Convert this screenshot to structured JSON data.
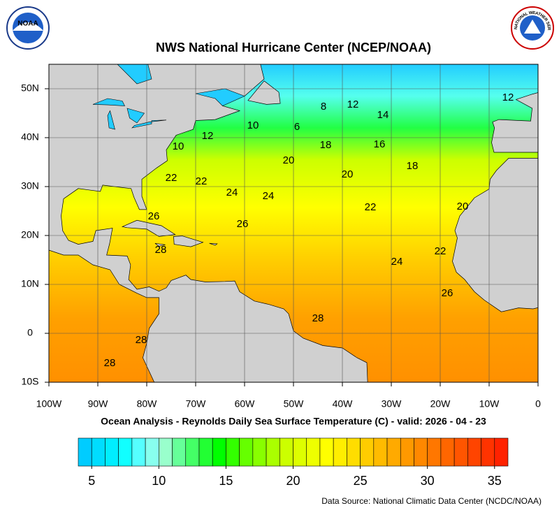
{
  "title": "NWS National Hurricane Center (NCEP/NOAA)",
  "subtitle": "Ocean Analysis - Reynolds Daily Sea Surface Temperature (C) - valid: 2026 - 04 - 23",
  "source": "Data Source: National Climatic Data Center (NCDC/NOAA)",
  "logos": {
    "left": "NOAA",
    "right": "NATIONAL WEATHER SERVICE"
  },
  "map": {
    "xlim": [
      -100,
      0
    ],
    "ylim": [
      -10,
      55
    ],
    "grid": true,
    "xticks": [
      {
        "value": -100,
        "label": "100W"
      },
      {
        "value": -90,
        "label": "90W"
      },
      {
        "value": -80,
        "label": "80W"
      },
      {
        "value": -70,
        "label": "70W"
      },
      {
        "value": -60,
        "label": "60W"
      },
      {
        "value": -50,
        "label": "50W"
      },
      {
        "value": -40,
        "label": "40W"
      },
      {
        "value": -30,
        "label": "30W"
      },
      {
        "value": -20,
        "label": "20W"
      },
      {
        "value": -10,
        "label": "10W"
      },
      0
    ],
    "yticks": [
      {
        "value": 50,
        "label": "50N"
      },
      {
        "value": 40,
        "label": "40N"
      },
      {
        "value": 30,
        "label": "30N"
      },
      {
        "value": 20,
        "label": "20N"
      },
      {
        "value": 10,
        "label": "10N"
      },
      0,
      {
        "value": -10,
        "label": "10S"
      }
    ],
    "contour_labels": [
      8,
      12,
      14,
      12,
      6,
      10,
      12,
      10,
      18,
      16,
      18,
      20,
      20,
      22,
      22,
      24,
      24,
      22,
      20,
      26,
      26,
      28,
      22,
      24,
      26,
      28,
      28,
      28
    ]
  },
  "colorbar": {
    "range": [
      4,
      36
    ],
    "ticks": [
      5,
      10,
      15,
      20,
      25,
      30,
      35
    ],
    "colors": [
      "#00ccff",
      "#00ddff",
      "#00eeff",
      "#11ffff",
      "#55ffff",
      "#88ffee",
      "#99ffcc",
      "#66ff99",
      "#44ff66",
      "#22ff33",
      "#00ff00",
      "#33ff00",
      "#66ff00",
      "#88ff00",
      "#aaff00",
      "#ccff00",
      "#ddff00",
      "#eeff00",
      "#ffff00",
      "#ffee00",
      "#ffdd00",
      "#ffcc00",
      "#ffbb00",
      "#ffaa00",
      "#ff9900",
      "#ff8800",
      "#ff7700",
      "#ff6600",
      "#ff5500",
      "#ff4400",
      "#ff3300",
      "#ff2200"
    ]
  }
}
